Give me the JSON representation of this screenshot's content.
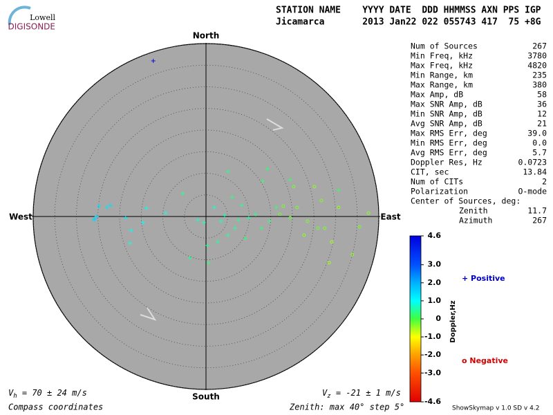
{
  "chart_data": {
    "type": "scatter",
    "logo": {
      "top": "Lowell",
      "bottom": "DIGISONDE"
    },
    "header": [
      "STATION NAME    YYYY DATE  DDD HHMMSS AXN PPS IGP",
      "Jicamarca       2013 Jan22 022 055743 417  75 +8G"
    ],
    "directions": {
      "north": "North",
      "south": "South",
      "east": "East",
      "west": "West"
    },
    "rlim": [
      0,
      40
    ],
    "rticks": [
      5,
      10,
      15,
      20,
      25,
      30,
      35,
      40
    ],
    "stats": [
      [
        "Num of Sources",
        "267"
      ],
      [
        "Min Freq, kHz",
        "3780"
      ],
      [
        "Max Freq, kHz",
        "4820"
      ],
      [
        "Min Range, km",
        "235"
      ],
      [
        "Max Range, km",
        "380"
      ],
      [
        "Max Amp, dB",
        "58"
      ],
      [
        "Max SNR Amp, dB",
        "36"
      ],
      [
        "Min SNR Amp, dB",
        "12"
      ],
      [
        "Avg SNR Amp, dB",
        "21"
      ],
      [
        "Max RMS Err, deg",
        "39.0"
      ],
      [
        "Min RMS Err, deg",
        "0.0"
      ],
      [
        "Avg RMS Err, deg",
        "5.7"
      ],
      [
        "Doppler Res, Hz",
        "0.0723"
      ],
      [
        "CIT, sec",
        "13.84"
      ],
      [
        "Num of CITs",
        "2"
      ],
      [
        "Polarization",
        "O-mode"
      ]
    ],
    "center": {
      "title": "Center of Sources, deg:",
      "rows": [
        [
          "Zenith",
          "11.7"
        ],
        [
          "Azimuth",
          "267"
        ]
      ]
    },
    "colorbar_label": "Doppler,Hz",
    "clim": [
      -4.6,
      4.6
    ],
    "cticks": [
      4.6,
      {
        "value": 3.0,
        "label": "3.0"
      },
      {
        "value": 2.0,
        "label": "2.0"
      },
      {
        "value": 1.0,
        "label": "1.0"
      },
      0,
      {
        "value": -1.0,
        "label": "-1.0"
      },
      {
        "value": -2.0,
        "label": "-2.0"
      },
      {
        "value": -3.0,
        "label": "-3.0"
      },
      -4.6
    ],
    "colormap": [
      "#0000e0",
      "#0050ff",
      "#00b0ff",
      "#00ffff",
      "#40ff40",
      "#ffff00",
      "#ffa000",
      "#ff5000",
      "#e00000"
    ],
    "legend": {
      "positive": "+ Positive",
      "negative": "o Negative",
      "positive_color": "#0000c0",
      "negative_color": "#d00000"
    },
    "vh": {
      "symbol": "V",
      "sub": "h",
      "text": " = 70 ± 24 m/s"
    },
    "vz": {
      "symbol": "V",
      "sub": "z",
      "text": " = -21 ± 1 m/s"
    },
    "coordinates": "Compass coordinates",
    "zenith_note": "Zenith: max 40°  step 5°",
    "footer": "ShowSkymap v 1.0   SD v 4.2",
    "x": [
      -25.8,
      -25.3,
      -25.9,
      -24.8,
      -22.9,
      -22.1,
      -18.6,
      -13.8,
      -9.3,
      -17.6,
      -17.3,
      -14.6,
      -12.2,
      5.1,
      14.2,
      -5.4,
      -3.7,
      0.6,
      1.9,
      3.5,
      6.7,
      8.3,
      9.9,
      13.1,
      0.3,
      2.7,
      5.1,
      9.1,
      11.5,
      14.7,
      16.3,
      -1.9,
      -0.5,
      4.3,
      7.5,
      6.1,
      12.8,
      30.7,
      19.5,
      21.1,
      25.1,
      26.7,
      29.1,
      33.9,
      35.5,
      37.6,
      23.5,
      25.9,
      19.5,
      17.9,
      22.7,
      27.5,
      30.7,
      28.5,
      20.3,
      17.1
    ],
    "y": [
      -0.5,
      0,
      -0.8,
      2.4,
      2.1,
      2.6,
      -0.3,
      1.9,
      0.8,
      -6.2,
      -3.2,
      -1.4,
      36,
      10.4,
      11,
      5.3,
      -9.6,
      -10.7,
      2.1,
      -1.1,
      -2.7,
      2.6,
      -0.3,
      8.2,
      -6.7,
      -5.9,
      -4.3,
      -5.1,
      0.5,
      -1.1,
      2.1,
      -0.8,
      -1.4,
      0.2,
      -0.8,
      4.5,
      -2.7,
      6.1,
      8.5,
      2.1,
      6.9,
      3.7,
      -5.9,
      -8.8,
      -2.4,
      0.8,
      -1.1,
      -2.7,
      -0.3,
      2.4,
      -4.3,
      -2.7,
      2.1,
      -10.7,
      6.9,
      0.5
    ],
    "doppler": [
      1.5,
      1.6,
      1.5,
      1.4,
      1.3,
      1.4,
      1.2,
      0.9,
      0.8,
      0.8,
      0.9,
      1.0,
      4.4,
      0.4,
      0.3,
      0.5,
      0.4,
      0.3,
      0.7,
      0.6,
      0.5,
      0.4,
      0.5,
      0.3,
      0.4,
      0.5,
      0.5,
      0.3,
      0.4,
      0.3,
      0.2,
      0.7,
      0.6,
      0.6,
      0.4,
      0.4,
      0.3,
      0.2,
      0.2,
      -0.3,
      -0.4,
      -0.3,
      -0.5,
      -0.4,
      -0.3,
      -0.4,
      -0.3,
      -0.2,
      -0.2,
      -0.3,
      -0.4,
      -0.3,
      -0.4,
      -0.5,
      -0.3,
      -0.2
    ]
  }
}
